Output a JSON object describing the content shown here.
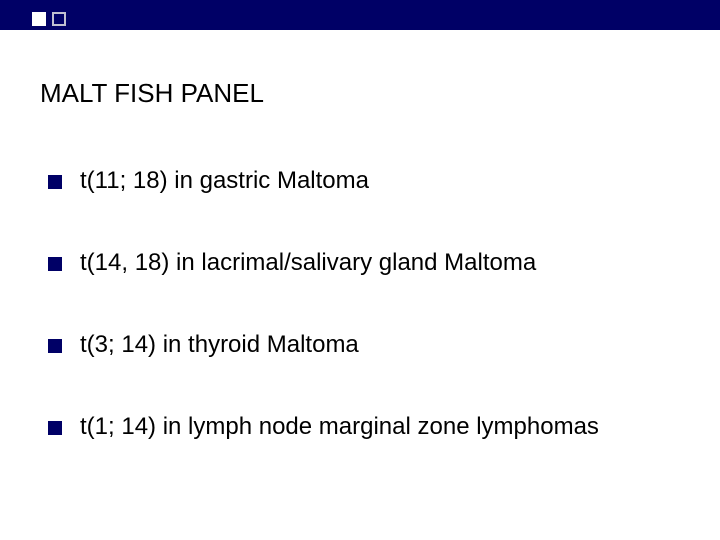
{
  "slide": {
    "title": "MALT FISH PANEL",
    "bullets": [
      "t(11; 18)  in gastric Maltoma",
      "t(14, 18) in lacrimal/salivary gland Maltoma",
      "t(3; 14) in thyroid Maltoma",
      "t(1; 14) in lymph node marginal zone lymphomas"
    ],
    "colors": {
      "topbar": "#000066",
      "bullet": "#000066",
      "background": "#ffffff",
      "text": "#000000"
    },
    "typography": {
      "title_fontsize": 26,
      "bullet_fontsize": 24,
      "font_family": "Arial"
    }
  }
}
